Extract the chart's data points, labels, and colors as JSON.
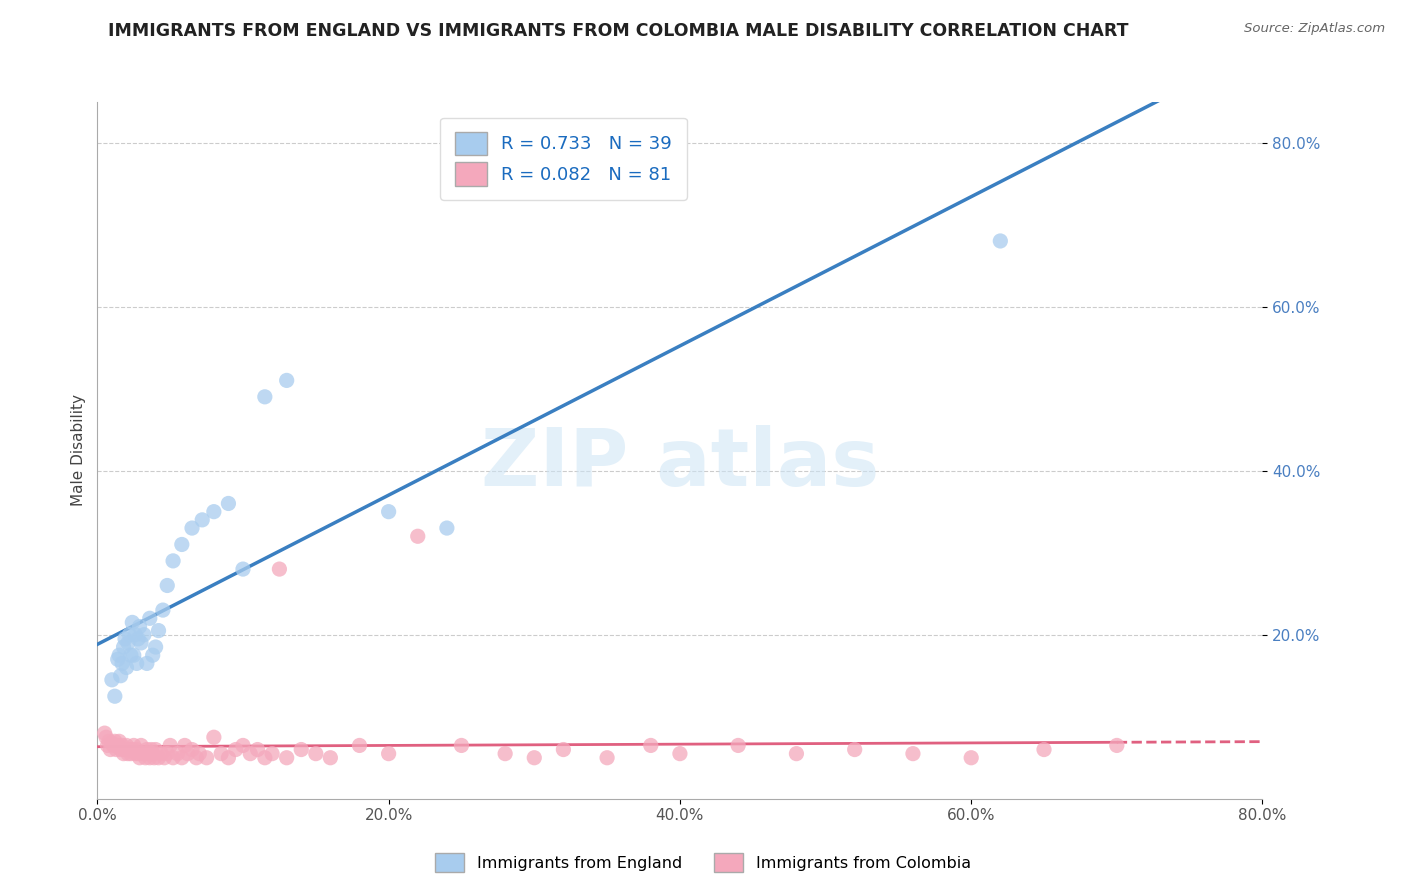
{
  "title": "IMMIGRANTS FROM ENGLAND VS IMMIGRANTS FROM COLOMBIA MALE DISABILITY CORRELATION CHART",
  "source": "Source: ZipAtlas.com",
  "ylabel": "Male Disability",
  "xlim": [
    0.0,
    0.8
  ],
  "ylim": [
    0.0,
    0.85
  ],
  "xticks": [
    0.0,
    0.2,
    0.4,
    0.6,
    0.8
  ],
  "yticks": [
    0.2,
    0.4,
    0.6,
    0.8
  ],
  "xticklabels": [
    "0.0%",
    "20.0%",
    "40.0%",
    "60.0%",
    "80.0%"
  ],
  "yticklabels": [
    "20.0%",
    "40.0%",
    "60.0%",
    "80.0%"
  ],
  "england_R": 0.733,
  "england_N": 39,
  "colombia_R": 0.082,
  "colombia_N": 81,
  "england_color": "#a8ccee",
  "colombia_color": "#f4a8bc",
  "england_line_color": "#3a7fc1",
  "colombia_line_color": "#e06080",
  "england_x": [
    0.01,
    0.012,
    0.014,
    0.015,
    0.016,
    0.017,
    0.018,
    0.019,
    0.02,
    0.021,
    0.022,
    0.023,
    0.024,
    0.025,
    0.026,
    0.027,
    0.028,
    0.029,
    0.03,
    0.032,
    0.034,
    0.036,
    0.038,
    0.04,
    0.042,
    0.045,
    0.048,
    0.052,
    0.058,
    0.065,
    0.072,
    0.08,
    0.09,
    0.1,
    0.115,
    0.13,
    0.2,
    0.24,
    0.62
  ],
  "england_y": [
    0.145,
    0.125,
    0.17,
    0.175,
    0.15,
    0.165,
    0.185,
    0.195,
    0.16,
    0.19,
    0.2,
    0.175,
    0.215,
    0.175,
    0.2,
    0.165,
    0.195,
    0.21,
    0.19,
    0.2,
    0.165,
    0.22,
    0.175,
    0.185,
    0.205,
    0.23,
    0.26,
    0.29,
    0.31,
    0.33,
    0.34,
    0.35,
    0.36,
    0.28,
    0.49,
    0.51,
    0.35,
    0.33,
    0.68
  ],
  "colombia_x": [
    0.005,
    0.006,
    0.007,
    0.008,
    0.009,
    0.01,
    0.011,
    0.012,
    0.013,
    0.014,
    0.015,
    0.016,
    0.017,
    0.018,
    0.019,
    0.02,
    0.021,
    0.022,
    0.023,
    0.024,
    0.025,
    0.026,
    0.027,
    0.028,
    0.029,
    0.03,
    0.031,
    0.032,
    0.033,
    0.034,
    0.035,
    0.036,
    0.037,
    0.038,
    0.039,
    0.04,
    0.042,
    0.044,
    0.046,
    0.048,
    0.05,
    0.052,
    0.055,
    0.058,
    0.06,
    0.062,
    0.065,
    0.068,
    0.07,
    0.075,
    0.08,
    0.085,
    0.09,
    0.095,
    0.1,
    0.105,
    0.11,
    0.115,
    0.12,
    0.125,
    0.13,
    0.14,
    0.15,
    0.16,
    0.18,
    0.2,
    0.22,
    0.25,
    0.28,
    0.3,
    0.32,
    0.35,
    0.38,
    0.4,
    0.44,
    0.48,
    0.52,
    0.56,
    0.6,
    0.65,
    0.7
  ],
  "colombia_y": [
    0.08,
    0.075,
    0.065,
    0.07,
    0.06,
    0.068,
    0.065,
    0.07,
    0.06,
    0.065,
    0.07,
    0.06,
    0.065,
    0.055,
    0.06,
    0.065,
    0.055,
    0.06,
    0.055,
    0.06,
    0.065,
    0.055,
    0.06,
    0.055,
    0.05,
    0.065,
    0.055,
    0.055,
    0.05,
    0.06,
    0.055,
    0.05,
    0.06,
    0.055,
    0.05,
    0.06,
    0.05,
    0.055,
    0.05,
    0.055,
    0.065,
    0.05,
    0.055,
    0.05,
    0.065,
    0.055,
    0.06,
    0.05,
    0.055,
    0.05,
    0.075,
    0.055,
    0.05,
    0.06,
    0.065,
    0.055,
    0.06,
    0.05,
    0.055,
    0.28,
    0.05,
    0.06,
    0.055,
    0.05,
    0.065,
    0.055,
    0.32,
    0.065,
    0.055,
    0.05,
    0.06,
    0.05,
    0.065,
    0.055,
    0.065,
    0.055,
    0.06,
    0.055,
    0.05,
    0.06,
    0.065
  ]
}
